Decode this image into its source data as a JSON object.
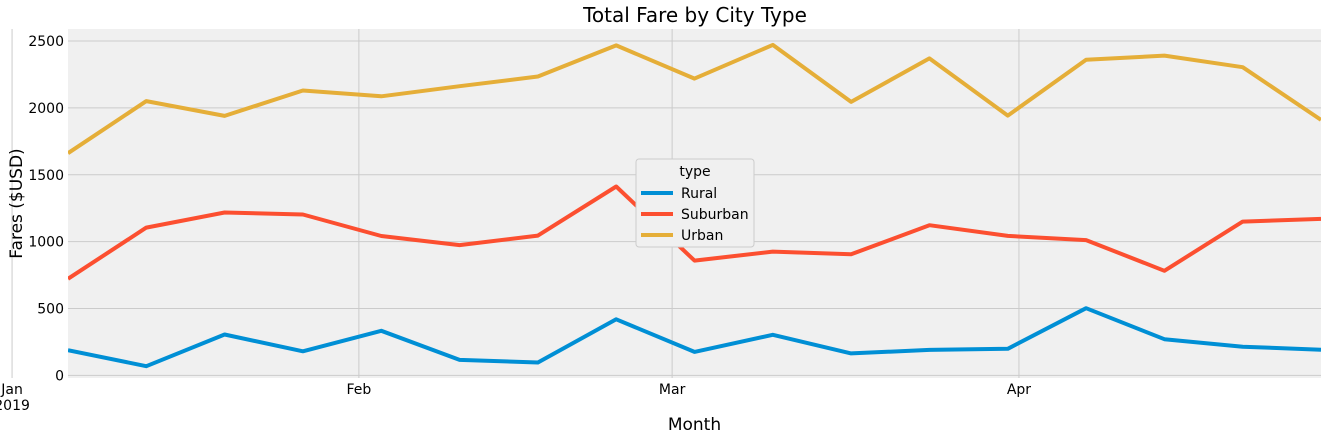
{
  "chart_data": {
    "type": "line",
    "title": "Total Fare by City Type",
    "xlabel": "Month",
    "ylabel": "Fares ($USD)",
    "x": [
      "2019-01-06",
      "2019-01-13",
      "2019-01-20",
      "2019-01-27",
      "2019-02-03",
      "2019-02-10",
      "2019-02-17",
      "2019-02-24",
      "2019-03-03",
      "2019-03-10",
      "2019-03-17",
      "2019-03-24",
      "2019-03-31",
      "2019-04-07",
      "2019-04-14",
      "2019-04-21",
      "2019-04-28"
    ],
    "x_ticks": [
      {
        "date": "2019-01-01",
        "label": "Jan",
        "sublabel": "2019"
      },
      {
        "date": "2019-02-01",
        "label": "Feb",
        "sublabel": ""
      },
      {
        "date": "2019-03-01",
        "label": "Mar",
        "sublabel": ""
      },
      {
        "date": "2019-04-01",
        "label": "Apr",
        "sublabel": ""
      }
    ],
    "xlim": [
      "2019-01-06",
      "2019-04-28"
    ],
    "ylim": [
      -20,
      2590
    ],
    "y_ticks": [
      0,
      500,
      1000,
      1500,
      2000,
      2500
    ],
    "grid": true,
    "legend": {
      "title": "type",
      "position": "center"
    },
    "series": [
      {
        "name": "Rural",
        "color": "#008fd5",
        "values": [
          188,
          68,
          305,
          180,
          333,
          115,
          96,
          419,
          175,
          303,
          164,
          190,
          198,
          502,
          270,
          214,
          192
        ]
      },
      {
        "name": "Suburban",
        "color": "#fc4f30",
        "values": [
          722,
          1105,
          1218,
          1203,
          1042,
          974,
          1045,
          1412,
          858,
          925,
          905,
          1123,
          1043,
          1011,
          782,
          1150,
          1170
        ]
      },
      {
        "name": "Urban",
        "color": "#e5ae38",
        "values": [
          1661,
          2051,
          1940,
          2130,
          2087,
          2162,
          2235,
          2467,
          2219,
          2471,
          2045,
          2370,
          1942,
          2360,
          2391,
          2304,
          1910
        ]
      }
    ]
  }
}
